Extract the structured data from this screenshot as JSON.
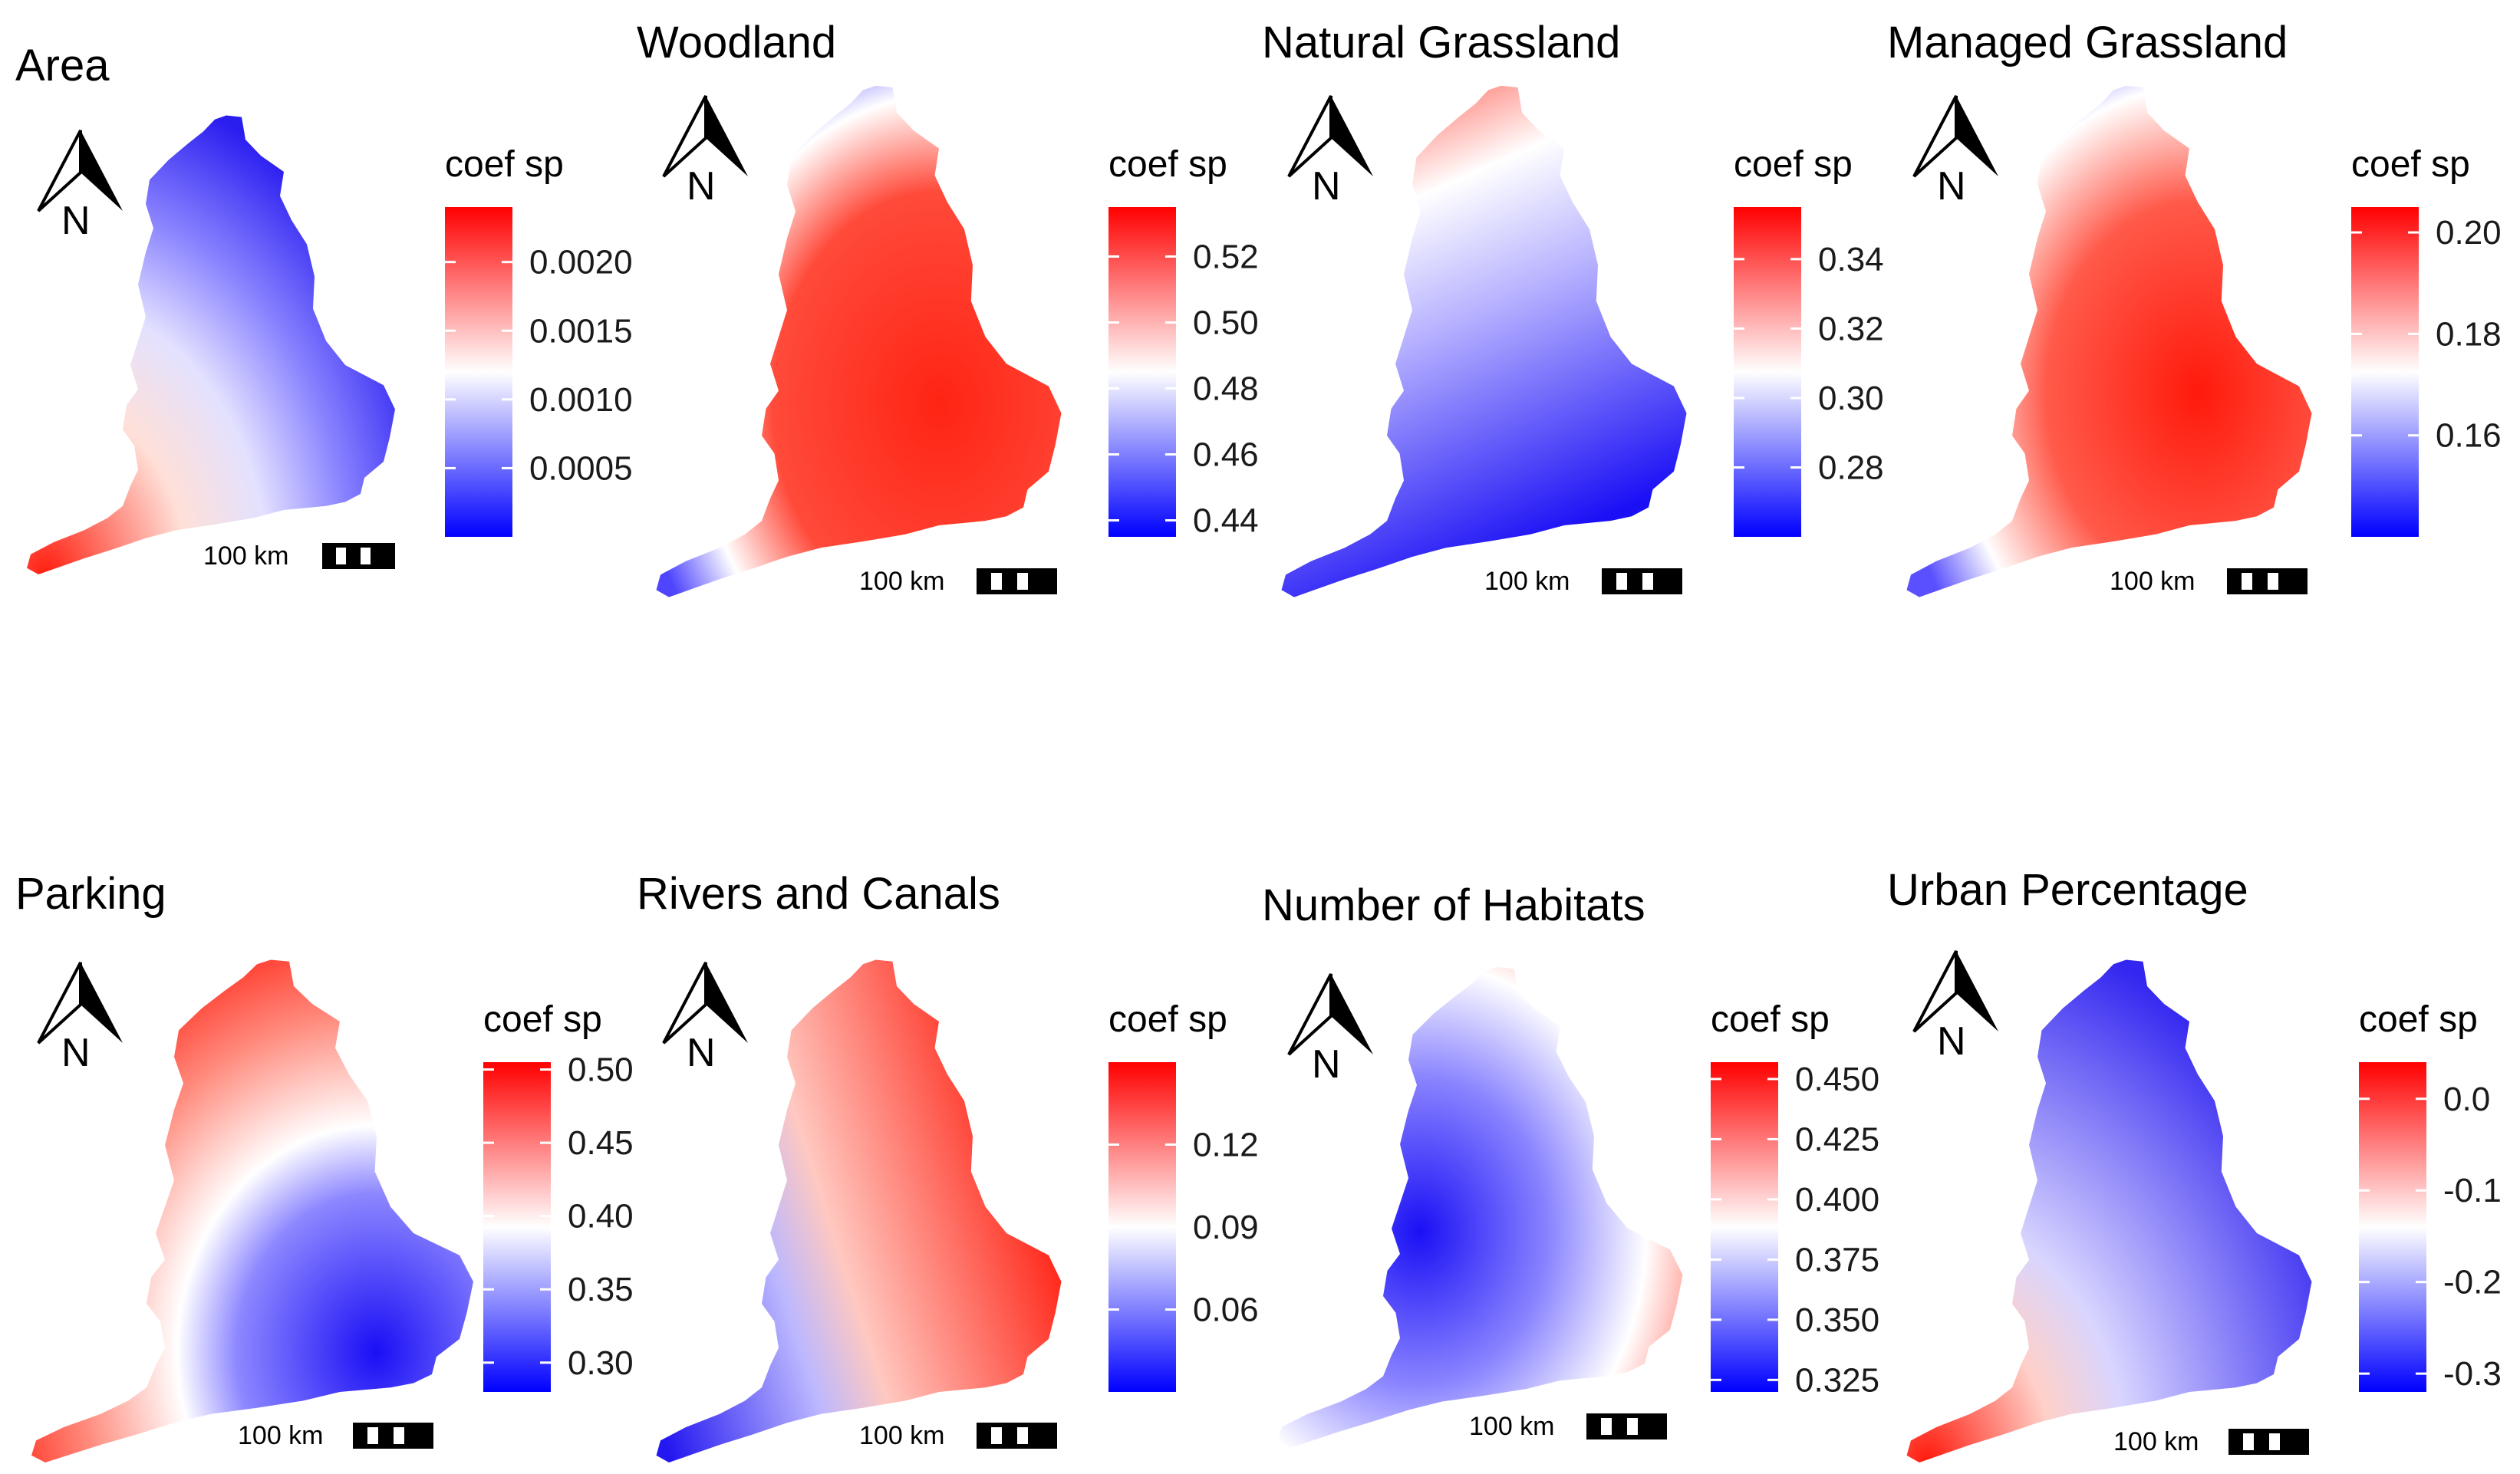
{
  "colors": {
    "high": "#ff0000",
    "mid": "#ffffff",
    "low": "#0000ff"
  },
  "chart_data": [
    {
      "type": "heatmap",
      "title": "Area",
      "legend_title": "coef sp",
      "range": [
        0.0,
        0.0024
      ],
      "ticks": [
        0.0005,
        0.001,
        0.0015,
        0.002
      ],
      "tick_labels": [
        "0.0005",
        "0.0010",
        "0.0015",
        "0.0020"
      ],
      "scale_text": "100 km",
      "north_label": "N",
      "pattern": "south-west high (red), north low (blue)"
    },
    {
      "type": "heatmap",
      "title": "Woodland",
      "legend_title": "coef sp",
      "range": [
        0.435,
        0.535
      ],
      "ticks": [
        0.44,
        0.46,
        0.48,
        0.5,
        0.52
      ],
      "tick_labels": [
        "0.44",
        "0.46",
        "0.48",
        "0.50",
        "0.52"
      ],
      "scale_text": "100 km",
      "north_label": "N",
      "pattern": "central and south-east high, far north and south-west tip low"
    },
    {
      "type": "heatmap",
      "title": "Natural Grassland",
      "legend_title": "coef sp",
      "range": [
        0.26,
        0.355
      ],
      "ticks": [
        0.28,
        0.3,
        0.32,
        0.34
      ],
      "tick_labels": [
        "0.28",
        "0.30",
        "0.32",
        "0.34"
      ],
      "scale_text": "100 km",
      "north_label": "N",
      "pattern": "north high, south-east low"
    },
    {
      "type": "heatmap",
      "title": "Managed Grassland",
      "legend_title": "coef sp",
      "range": [
        0.14,
        0.205
      ],
      "ticks": [
        0.16,
        0.18,
        0.2
      ],
      "tick_labels": [
        "0.16",
        "0.18",
        "0.20"
      ],
      "scale_text": "100 km",
      "north_label": "N",
      "pattern": "south-east centre high, north and south-west tip low"
    },
    {
      "type": "heatmap",
      "title": "Parking",
      "legend_title": "coef sp",
      "range": [
        0.28,
        0.505
      ],
      "ticks": [
        0.3,
        0.35,
        0.4,
        0.45,
        0.5
      ],
      "tick_labels": [
        "0.30",
        "0.35",
        "0.40",
        "0.45",
        "0.50"
      ],
      "scale_text": "100 km",
      "north_label": "N",
      "pattern": "north and south-west high, south-east low"
    },
    {
      "type": "heatmap",
      "title": "Rivers and Canals",
      "legend_title": "coef sp",
      "range": [
        0.03,
        0.15
      ],
      "ticks": [
        0.06,
        0.09,
        0.12
      ],
      "tick_labels": [
        "0.06",
        "0.09",
        "0.12"
      ],
      "scale_text": "100 km",
      "north_label": "N",
      "pattern": "east high, west and south-west low"
    },
    {
      "type": "heatmap",
      "title": "Number of Habitats",
      "legend_title": "coef sp",
      "range": [
        0.32,
        0.457
      ],
      "ticks": [
        0.325,
        0.35,
        0.375,
        0.4,
        0.425,
        0.45
      ],
      "tick_labels": [
        "0.325",
        "0.350",
        "0.375",
        "0.400",
        "0.425",
        "0.450"
      ],
      "scale_text": "100 km",
      "north_label": "N",
      "pattern": "central-west low, south-west tip and east edge high"
    },
    {
      "type": "heatmap",
      "title": "Urban Percentage",
      "legend_title": "coef sp",
      "range": [
        -0.32,
        0.04
      ],
      "ticks": [
        -0.3,
        -0.2,
        -0.1,
        0.0
      ],
      "tick_labels": [
        "-0.3",
        "-0.2",
        "-0.1",
        "0.0"
      ],
      "scale_text": "100 km",
      "north_label": "N",
      "pattern": "south-west high, east low"
    }
  ]
}
